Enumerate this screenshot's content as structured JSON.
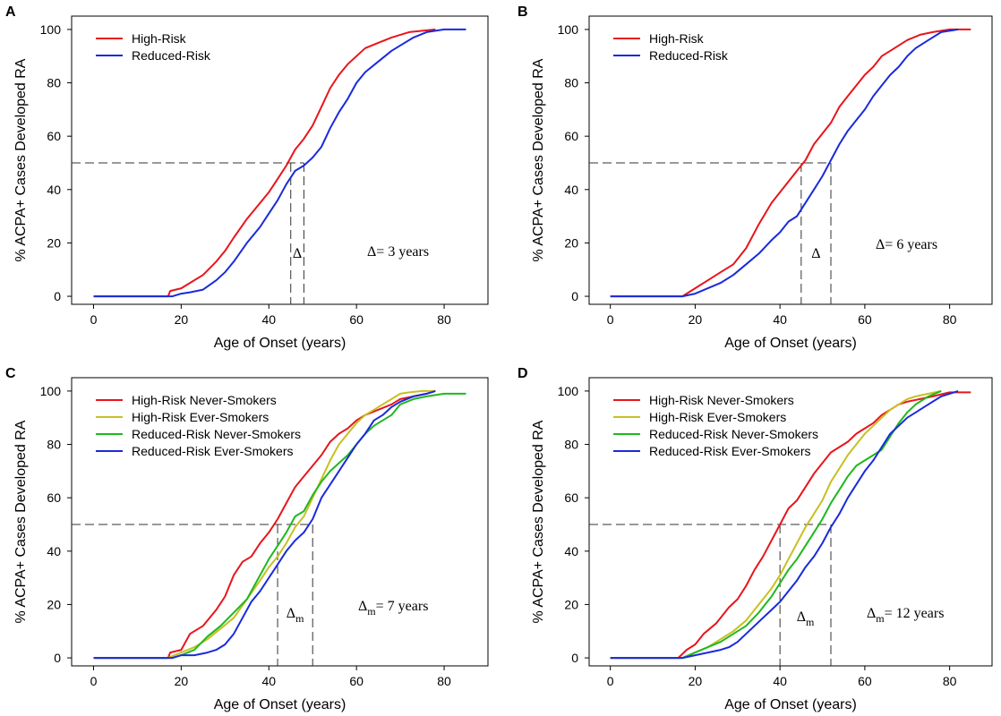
{
  "chart_data": [
    {
      "panel": "A",
      "type": "line",
      "xlabel": "Age of Onset (years)",
      "ylabel": "% ACPA+ Cases Developed RA",
      "xlim": [
        -5,
        90
      ],
      "ylim": [
        -3,
        105
      ],
      "xticks": [
        0,
        20,
        40,
        60,
        80
      ],
      "yticks": [
        0,
        20,
        40,
        60,
        80,
        100
      ],
      "grid": false,
      "legend_position": "top-left",
      "reference_y": 50,
      "reference_x": [
        45,
        48
      ],
      "delta_label": "Δ",
      "delta_text": "Δ= 3 years",
      "delta_sub": "",
      "series": [
        {
          "name": "High-Risk",
          "color": "#e8151b",
          "x": [
            0,
            17,
            17.5,
            20,
            22,
            25,
            28,
            30,
            32,
            35,
            38,
            40,
            42,
            44,
            46,
            48,
            50,
            52,
            54,
            56,
            58,
            60,
            62,
            65,
            68,
            70,
            72,
            75,
            78
          ],
          "y": [
            0,
            0,
            2,
            3,
            5,
            8,
            13,
            17,
            22,
            29,
            35,
            39,
            44,
            49,
            55,
            59,
            64,
            71,
            78,
            83,
            87,
            90,
            93,
            95,
            97,
            98,
            99,
            99.5,
            100
          ]
        },
        {
          "name": "Reduced-Risk",
          "color": "#1a2adb",
          "x": [
            0,
            18,
            20,
            22,
            25,
            28,
            30,
            32,
            35,
            38,
            40,
            42,
            44,
            46,
            48,
            50,
            52,
            54,
            56,
            58,
            60,
            62,
            65,
            68,
            70,
            73,
            76,
            80,
            85
          ],
          "y": [
            0,
            0,
            1,
            1.5,
            2.5,
            6,
            9,
            13,
            20,
            26,
            31,
            36,
            42,
            47,
            49,
            52,
            56,
            63,
            69,
            74,
            80,
            84,
            88,
            92,
            94,
            97,
            99,
            100,
            100
          ]
        }
      ]
    },
    {
      "panel": "B",
      "type": "line",
      "xlabel": "Age of Onset (years)",
      "ylabel": "% ACPA+ Cases Developed RA",
      "xlim": [
        -5,
        90
      ],
      "ylim": [
        -3,
        105
      ],
      "xticks": [
        0,
        20,
        40,
        60,
        80
      ],
      "yticks": [
        0,
        20,
        40,
        60,
        80,
        100
      ],
      "grid": false,
      "legend_position": "top-left",
      "reference_y": 50,
      "reference_x": [
        45,
        52
      ],
      "delta_label": "Δ",
      "delta_text": "Δ= 6 years",
      "delta_sub": "",
      "series": [
        {
          "name": "High-Risk",
          "color": "#e8151b",
          "x": [
            0,
            17,
            20,
            23,
            26,
            29,
            32,
            35,
            38,
            40,
            42,
            44,
            46,
            48,
            50,
            52,
            54,
            56,
            58,
            60,
            62,
            64,
            66,
            68,
            70,
            73,
            76,
            80,
            85
          ],
          "y": [
            0,
            0,
            3,
            6,
            9,
            12,
            18,
            27,
            35,
            39,
            43,
            47,
            51,
            57,
            61,
            65,
            71,
            75,
            79,
            83,
            86,
            90,
            92,
            94,
            96,
            98,
            99,
            100,
            100
          ]
        },
        {
          "name": "Reduced-Risk",
          "color": "#1a2adb",
          "x": [
            0,
            17,
            20,
            23,
            26,
            29,
            32,
            35,
            38,
            40,
            42,
            44,
            46,
            48,
            50,
            52,
            54,
            56,
            58,
            60,
            62,
            64,
            66,
            68,
            70,
            72,
            75,
            78,
            82
          ],
          "y": [
            0,
            0,
            1,
            3,
            5,
            8,
            12,
            16,
            21,
            24,
            28,
            30,
            35,
            40,
            45,
            51,
            57,
            62,
            66,
            70,
            75,
            79,
            83,
            86,
            90,
            93,
            96,
            99,
            100
          ]
        }
      ]
    },
    {
      "panel": "C",
      "type": "line",
      "xlabel": "Age of Onset (years)",
      "ylabel": "% ACPA+ Cases Developed RA",
      "xlim": [
        -5,
        90
      ],
      "ylim": [
        -3,
        105
      ],
      "xticks": [
        0,
        20,
        40,
        60,
        80
      ],
      "yticks": [
        0,
        20,
        40,
        60,
        80,
        100
      ],
      "grid": false,
      "legend_position": "top-left",
      "reference_y": 50,
      "reference_x": [
        42,
        50
      ],
      "delta_label": "Δ",
      "delta_text": "Δ",
      "delta_sub": "m",
      "delta_suffix": "= 7 years",
      "series": [
        {
          "name": "High-Risk Never-Smokers",
          "color": "#e8151b",
          "x": [
            0,
            17,
            17.5,
            20,
            22,
            25,
            28,
            30,
            32,
            34,
            36,
            38,
            40,
            42,
            44,
            46,
            48,
            50,
            52,
            54,
            56,
            58,
            60,
            62,
            65,
            68,
            70,
            73,
            76,
            78
          ],
          "y": [
            0,
            0,
            2,
            3,
            9,
            12,
            18,
            23,
            31,
            36,
            38,
            43,
            47,
            52,
            58,
            64,
            68,
            72,
            76,
            81,
            84,
            86,
            89,
            91,
            93,
            95,
            97,
            98,
            99,
            100
          ]
        },
        {
          "name": "High-Risk Ever-Smokers",
          "color": "#c8c020",
          "x": [
            0,
            17,
            20,
            23,
            26,
            29,
            32,
            35,
            38,
            40,
            42,
            44,
            46,
            48,
            50,
            52,
            54,
            56,
            58,
            60,
            62,
            64,
            66,
            68,
            70,
            72,
            75,
            78
          ],
          "y": [
            0,
            0,
            2,
            4,
            7,
            11,
            15,
            22,
            29,
            34,
            38,
            43,
            49,
            53,
            60,
            67,
            74,
            80,
            84,
            88,
            91,
            93,
            95,
            97,
            99,
            99.5,
            100,
            100
          ]
        },
        {
          "name": "Reduced-Risk Never-Smokers",
          "color": "#1fb81f",
          "x": [
            0,
            18,
            20,
            23,
            26,
            29,
            32,
            35,
            38,
            40,
            42,
            44,
            46,
            48,
            50,
            52,
            54,
            56,
            58,
            60,
            62,
            64,
            66,
            68,
            70,
            73,
            76,
            80,
            85
          ],
          "y": [
            0,
            0,
            1,
            3,
            8,
            12,
            17,
            22,
            31,
            37,
            42,
            47,
            53,
            55,
            61,
            66,
            70,
            73,
            76,
            80,
            84,
            87,
            89,
            91,
            95,
            97,
            98,
            99,
            99
          ]
        },
        {
          "name": "Reduced-Risk Ever-Smokers",
          "color": "#1a2adb",
          "x": [
            0,
            18,
            20,
            23,
            26,
            28,
            30,
            32,
            34,
            36,
            38,
            40,
            42,
            44,
            46,
            48,
            50,
            52,
            54,
            56,
            58,
            60,
            62,
            64,
            66,
            68,
            70,
            73,
            76,
            78
          ],
          "y": [
            0,
            0,
            1,
            1,
            2,
            3,
            5,
            9,
            15,
            21,
            25,
            30,
            35,
            40,
            44,
            47,
            52,
            60,
            65,
            70,
            75,
            80,
            84,
            89,
            91,
            94,
            96,
            98,
            99,
            100
          ]
        }
      ]
    },
    {
      "panel": "D",
      "type": "line",
      "xlabel": "Age of Onset (years)",
      "ylabel": "% ACPA+ Cases Developed RA",
      "xlim": [
        -5,
        90
      ],
      "ylim": [
        -3,
        105
      ],
      "xticks": [
        0,
        20,
        40,
        60,
        80
      ],
      "yticks": [
        0,
        20,
        40,
        60,
        80,
        100
      ],
      "grid": false,
      "legend_position": "top-left",
      "reference_y": 50,
      "reference_x": [
        40,
        52
      ],
      "delta_label": "Δ",
      "delta_text": "Δ",
      "delta_sub": "m",
      "delta_suffix": "= 12 years",
      "series": [
        {
          "name": "High-Risk Never-Smokers",
          "color": "#e8151b",
          "x": [
            0,
            16,
            18,
            20,
            22,
            25,
            28,
            30,
            32,
            34,
            36,
            38,
            40,
            42,
            44,
            46,
            48,
            50,
            52,
            54,
            56,
            58,
            60,
            62,
            64,
            66,
            68,
            70,
            73,
            76,
            80,
            85
          ],
          "y": [
            0,
            0,
            3,
            5,
            9,
            13,
            19,
            22,
            27,
            33,
            38,
            44,
            50,
            56,
            59,
            64,
            69,
            73,
            77,
            79,
            81,
            84,
            86,
            88,
            91,
            93,
            95,
            96,
            97,
            98,
            99.5,
            99.5
          ]
        },
        {
          "name": "High-Risk Ever-Smokers",
          "color": "#c8c020",
          "x": [
            0,
            17,
            20,
            23,
            26,
            29,
            32,
            35,
            38,
            40,
            42,
            44,
            46,
            48,
            50,
            52,
            54,
            56,
            58,
            60,
            62,
            64,
            66,
            68,
            70,
            72,
            75,
            78
          ],
          "y": [
            0,
            0,
            2,
            4,
            7,
            10,
            14,
            20,
            26,
            31,
            37,
            43,
            49,
            54,
            59,
            66,
            71,
            76,
            80,
            84,
            87,
            90,
            93,
            95,
            97,
            98,
            99,
            100
          ]
        },
        {
          "name": "Reduced-Risk Never-Smokers",
          "color": "#1fb81f",
          "x": [
            0,
            17,
            20,
            23,
            26,
            29,
            32,
            35,
            38,
            40,
            42,
            44,
            46,
            48,
            50,
            52,
            54,
            56,
            58,
            60,
            62,
            64,
            66,
            68,
            70,
            72,
            75,
            78
          ],
          "y": [
            0,
            0,
            2,
            4,
            6,
            9,
            12,
            17,
            23,
            28,
            33,
            37,
            42,
            47,
            52,
            58,
            63,
            68,
            72,
            74,
            76,
            78,
            83,
            88,
            92,
            95,
            98,
            100
          ]
        },
        {
          "name": "Reduced-Risk Ever-Smokers",
          "color": "#1a2adb",
          "x": [
            0,
            17,
            20,
            23,
            26,
            28,
            30,
            32,
            34,
            36,
            38,
            40,
            42,
            44,
            46,
            48,
            50,
            52,
            54,
            56,
            58,
            60,
            62,
            64,
            66,
            68,
            70,
            72,
            75,
            78,
            82
          ],
          "y": [
            0,
            0,
            1,
            2,
            3,
            4,
            6,
            9,
            12,
            15,
            18,
            21,
            25,
            29,
            34,
            38,
            43,
            49,
            54,
            60,
            65,
            70,
            74,
            79,
            84,
            87,
            90,
            92,
            95,
            98,
            100
          ]
        }
      ]
    }
  ]
}
